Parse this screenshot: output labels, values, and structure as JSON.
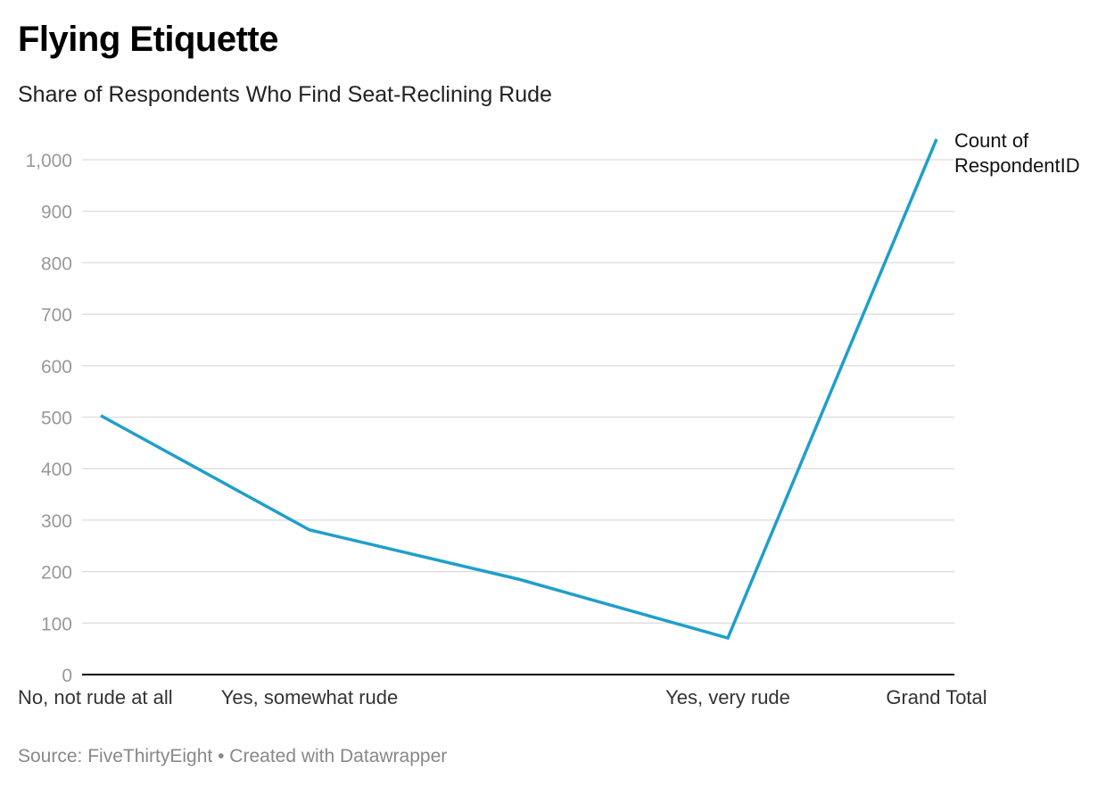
{
  "title": "Flying Etiquette",
  "subtitle": "Share of Respondents Who Find Seat-Reclining Rude",
  "footer": {
    "source": "Source: FiveThirtyEight",
    "separator": "•",
    "credit": "Created with Datawrapper"
  },
  "colors": {
    "line": "#1f9fcc",
    "grid": "#e0e0e0",
    "axis": "#000000",
    "tick_text": "#999999",
    "category_text": "#333333"
  },
  "chart_data": {
    "type": "line",
    "x": [
      "No, not rude at all",
      "Yes, somewhat rude",
      "",
      "Yes, very rude",
      "Grand Total"
    ],
    "series": [
      {
        "name": "Count of RespondentID",
        "values": [
          503,
          281,
          185,
          71,
          1040
        ]
      }
    ],
    "ylim": [
      0,
      1000
    ],
    "yticks": [
      "0",
      "100",
      "200",
      "300",
      "400",
      "500",
      "600",
      "700",
      "800",
      "900",
      "1,000"
    ],
    "xlabel": "",
    "ylabel": "",
    "grid": true,
    "legend": "line-end-label"
  }
}
